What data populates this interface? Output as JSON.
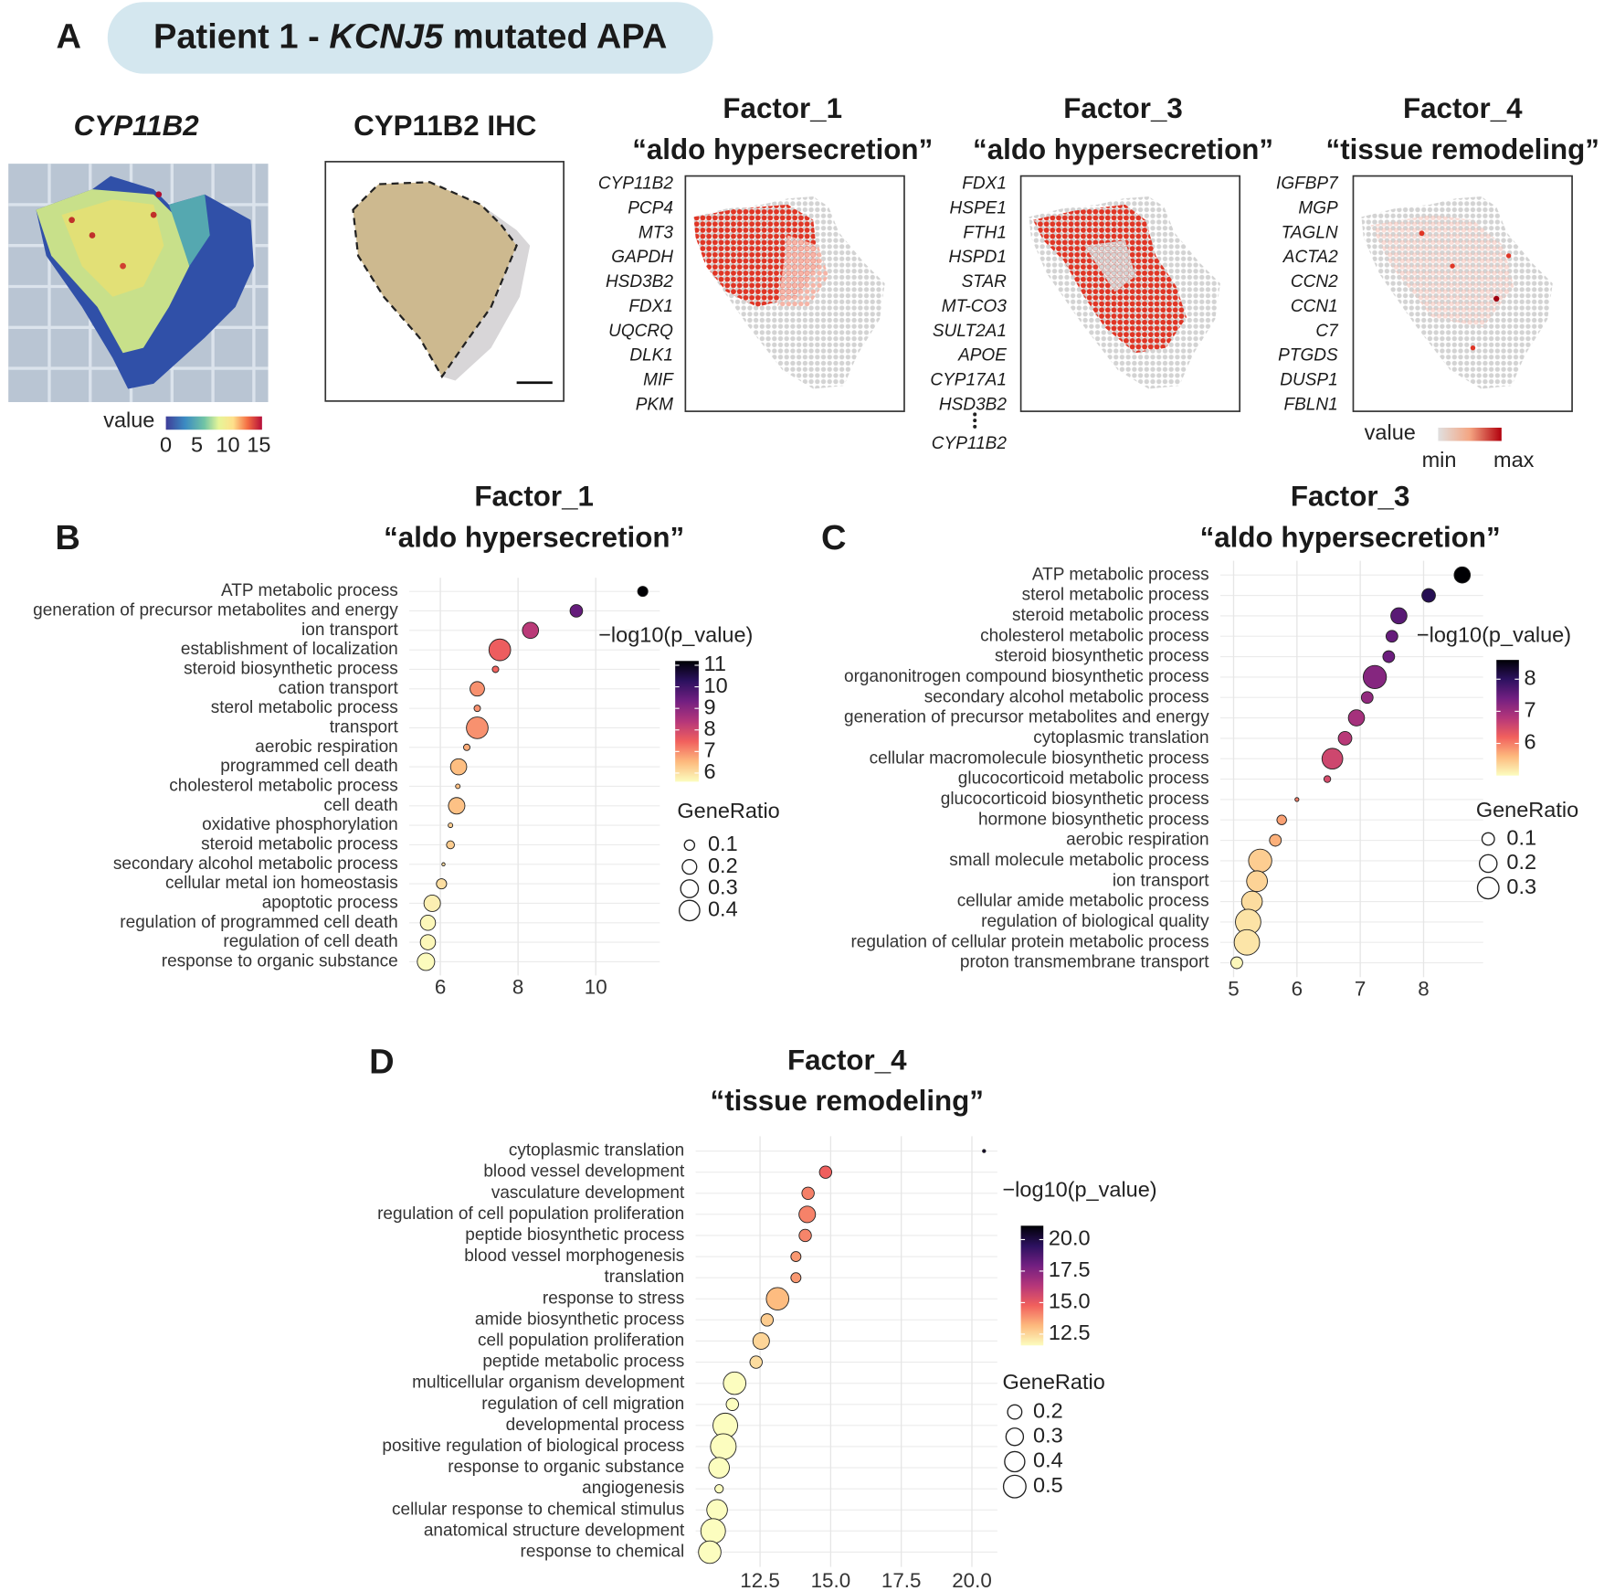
{
  "panel_a": {
    "label": "A",
    "title": {
      "before": "Patient 1 - ",
      "gene": "KCNJ5",
      "after": " mutated APA"
    },
    "cyp_map": {
      "title": "CYP11B2",
      "legend_title": "value",
      "ticks": [
        0,
        5,
        10,
        15
      ],
      "lim": [
        0,
        15.5
      ]
    },
    "ihc": {
      "title": "CYP11B2 IHC"
    },
    "factor_maps": [
      {
        "title": "Factor_1",
        "subtitle": "“aldo hypersecretion”",
        "genes": [
          "CYP11B2",
          "PCP4",
          "MT3",
          "GAPDH",
          "HSD3B2",
          "FDX1",
          "UQCRQ",
          "DLK1",
          "MIF",
          "PKM"
        ]
      },
      {
        "title": "Factor_3",
        "subtitle": "“aldo hypersecretion”",
        "genes": [
          "FDX1",
          "HSPE1",
          "FTH1",
          "HSPD1",
          "STAR",
          "MT-CO3",
          "SULT2A1",
          "APOE",
          "CYP17A1",
          "HSD3B2",
          "CYP11B2"
        ]
      },
      {
        "title": "Factor_4",
        "subtitle": "“tissue remodeling”",
        "genes": [
          "IGFBP7",
          "MGP",
          "TAGLN",
          "ACTA2",
          "CCN2",
          "CCN1",
          "C7",
          "PTGDS",
          "DUSP1",
          "FBLN1"
        ]
      }
    ],
    "factor_legend": {
      "title": "value",
      "min": "min",
      "max": "max"
    }
  },
  "chart_data": [
    {
      "type": "dotplot",
      "panel": "B",
      "title": "Factor_1",
      "subtitle": "“aldo hypersecretion”",
      "categories": [
        "ATP metabolic process",
        "generation of precursor metabolites and energy",
        "ion transport",
        "establishment of localization",
        "steroid biosynthetic process",
        "cation transport",
        "sterol metabolic process",
        "transport",
        "aerobic respiration",
        "programmed cell death",
        "cholesterol metabolic process",
        "cell death",
        "oxidative phosphorylation",
        "steroid metabolic process",
        "secondary alcohol metabolic process",
        "cellular metal ion homeostasis",
        "apoptotic process",
        "regulation of programmed cell death",
        "regulation of cell death",
        "response to organic substance"
      ],
      "values": [
        11.21,
        9.5,
        8.32,
        7.53,
        7.42,
        6.95,
        6.95,
        6.95,
        6.68,
        6.47,
        6.45,
        6.42,
        6.26,
        6.26,
        6.08,
        6.03,
        5.79,
        5.68,
        5.68,
        5.63
      ],
      "gene_ratio": [
        0.1,
        0.15,
        0.25,
        0.45,
        0.04,
        0.2,
        0.04,
        0.45,
        0.04,
        0.25,
        0.02,
        0.26,
        0.02,
        0.06,
        0.01,
        0.1,
        0.26,
        0.22,
        0.22,
        0.29
      ],
      "xlim": [
        5.2,
        11.65
      ],
      "xticks": [
        6,
        8,
        10
      ],
      "grid": true,
      "color_label": "−log10(p_value)",
      "color_lim": [
        5.6,
        11.2
      ],
      "color_ticks": [
        11,
        10,
        9,
        8,
        7,
        6
      ],
      "colormap": [
        "#fcfdbf",
        "#fdb97d",
        "#f1605d",
        "#b5367a",
        "#721f81",
        "#2c115f",
        "#000004"
      ],
      "size_label": "GeneRatio",
      "size_ticks": [
        0.1,
        0.2,
        0.3,
        0.4
      ]
    },
    {
      "type": "dotplot",
      "panel": "C",
      "title": "Factor_3",
      "subtitle": "“aldo hypersecretion”",
      "categories": [
        "ATP metabolic process",
        "sterol metabolic process",
        "steroid metabolic process",
        "cholesterol metabolic process",
        "steroid biosynthetic process",
        "organonitrogen compound biosynthetic process",
        "secondary alcohol metabolic process",
        "generation of precursor metabolites and energy",
        "cytoplasmic translation",
        "cellular macromolecule biosynthetic process",
        "glucocorticoid metabolic process",
        "glucocorticoid biosynthetic process",
        "hormone biosynthetic process",
        "aerobic respiration",
        "small molecule metabolic process",
        "ion transport",
        "cellular amide metabolic process",
        "regulation of biological quality",
        "regulation of cellular protein metabolic process",
        "proton transmembrane transport"
      ],
      "values": [
        8.61,
        8.08,
        7.61,
        7.5,
        7.45,
        7.23,
        7.11,
        6.94,
        6.76,
        6.56,
        6.48,
        6.0,
        5.76,
        5.66,
        5.42,
        5.37,
        5.29,
        5.23,
        5.21,
        5.05
      ],
      "gene_ratio": [
        0.17,
        0.12,
        0.17,
        0.09,
        0.09,
        0.35,
        0.09,
        0.17,
        0.12,
        0.28,
        0.03,
        0.01,
        0.06,
        0.09,
        0.35,
        0.28,
        0.28,
        0.42,
        0.42,
        0.09
      ],
      "xlim": [
        4.79,
        8.94
      ],
      "xticks": [
        5,
        6,
        7,
        8
      ],
      "grid": true,
      "color_label": "−log10(p_value)",
      "color_lim": [
        5.0,
        8.6
      ],
      "color_ticks": [
        8,
        7,
        6
      ],
      "colormap": [
        "#fcfdbf",
        "#fdb97d",
        "#f1605d",
        "#b5367a",
        "#721f81",
        "#2c115f",
        "#000004"
      ],
      "size_label": "GeneRatio",
      "size_ticks": [
        0.1,
        0.2,
        0.3
      ]
    },
    {
      "type": "dotplot",
      "panel": "D",
      "title": "Factor_4",
      "subtitle": "“tissue remodeling”",
      "categories": [
        "cytoplasmic translation",
        "blood vessel development",
        "vasculature development",
        "regulation of cell population proliferation",
        "peptide biosynthetic process",
        "blood vessel morphogenesis",
        "translation",
        "response to stress",
        "amide biosynthetic process",
        "cell population proliferation",
        "peptide metabolic process",
        "multicellular organism development",
        "regulation of cell migration",
        "developmental process",
        "positive regulation of biological process",
        "response to organic substance",
        "angiogenesis",
        "cellular response to chemical stimulus",
        "anatomical structure development",
        "response to chemical"
      ],
      "values": [
        20.43,
        14.82,
        14.2,
        14.17,
        14.1,
        13.77,
        13.77,
        13.12,
        12.75,
        12.54,
        12.36,
        11.6,
        11.52,
        11.27,
        11.2,
        11.05,
        11.05,
        10.98,
        10.84,
        10.72
      ],
      "gene_ratio": [
        0.01,
        0.15,
        0.15,
        0.27,
        0.15,
        0.1,
        0.1,
        0.5,
        0.15,
        0.27,
        0.15,
        0.5,
        0.15,
        0.6,
        0.65,
        0.42,
        0.07,
        0.42,
        0.6,
        0.5
      ],
      "xlim": [
        10.22,
        20.9
      ],
      "xticks": [
        12.5,
        {
          "value": 15,
          "label": "15.0"
        },
        17.5,
        {
          "value": 20,
          "label": "20.0"
        }
      ],
      "grid": true,
      "color_label": "−log10(p_value)",
      "color_lim": [
        11.6,
        21.1
      ],
      "color_ticks": [
        {
          "value": 20,
          "label": "20.0"
        },
        17.5,
        {
          "value": 15,
          "label": "15.0"
        },
        12.5
      ],
      "colormap": [
        "#fcfdbf",
        "#fdb97d",
        "#f1605d",
        "#b5367a",
        "#721f81",
        "#2c115f",
        "#000004"
      ],
      "size_label": "GeneRatio",
      "size_ticks": [
        0.2,
        0.3,
        0.4,
        0.5
      ]
    }
  ]
}
